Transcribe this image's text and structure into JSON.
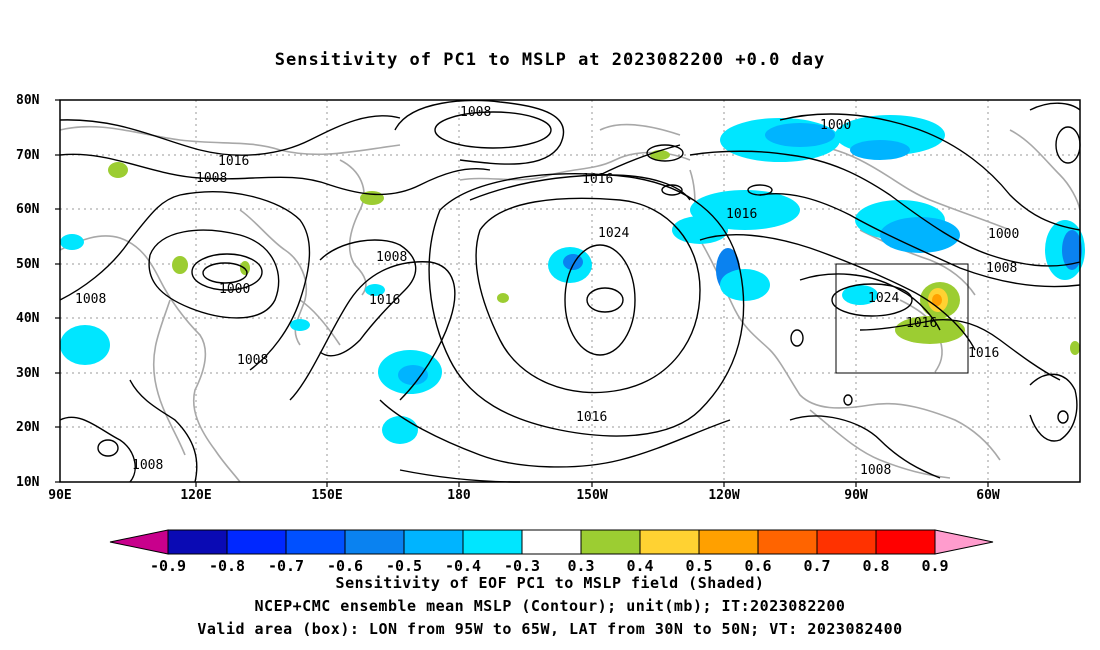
{
  "title": "Sensitivity of PC1 to MSLP at 2023082200 +0.0 day",
  "lat_labels": [
    "80N",
    "70N",
    "60N",
    "50N",
    "40N",
    "30N",
    "20N",
    "10N"
  ],
  "lon_labels": [
    "90E",
    "120E",
    "150E",
    "180",
    "150W",
    "120W",
    "90W",
    "60W"
  ],
  "contour_labels": [
    "1008",
    "1016",
    "1008",
    "1000",
    "1008",
    "1008",
    "1008",
    "1016",
    "1016",
    "1024",
    "1016",
    "1000",
    "1016",
    "1000",
    "1008",
    "1024",
    "1016",
    "1016",
    "1008",
    "1008"
  ],
  "colorbar": {
    "labels": [
      "-0.9",
      "-0.8",
      "-0.7",
      "-0.6",
      "-0.5",
      "-0.4",
      "-0.3",
      "0.3",
      "0.4",
      "0.5",
      "0.6",
      "0.7",
      "0.8",
      "0.9"
    ],
    "colors": [
      "#c8008c",
      "#0a0ab4",
      "#0028ff",
      "#0050ff",
      "#0a82f0",
      "#00b4ff",
      "#00e6ff",
      "#ffffff",
      "#9ccd32",
      "#ffd232",
      "#ffa000",
      "#ff6400",
      "#ff3200",
      "#ff0000",
      "#ff9ccd"
    ]
  },
  "caption": {
    "line1": "Sensitivity of EOF PC1 to MSLP field (Shaded)",
    "line2": "NCEP+CMC ensemble mean MSLP (Contour); unit(mb); IT:2023082200",
    "line3": "Valid area (box): LON from 95W to 65W, LAT from 30N to 50N; VT: 2023082400"
  }
}
